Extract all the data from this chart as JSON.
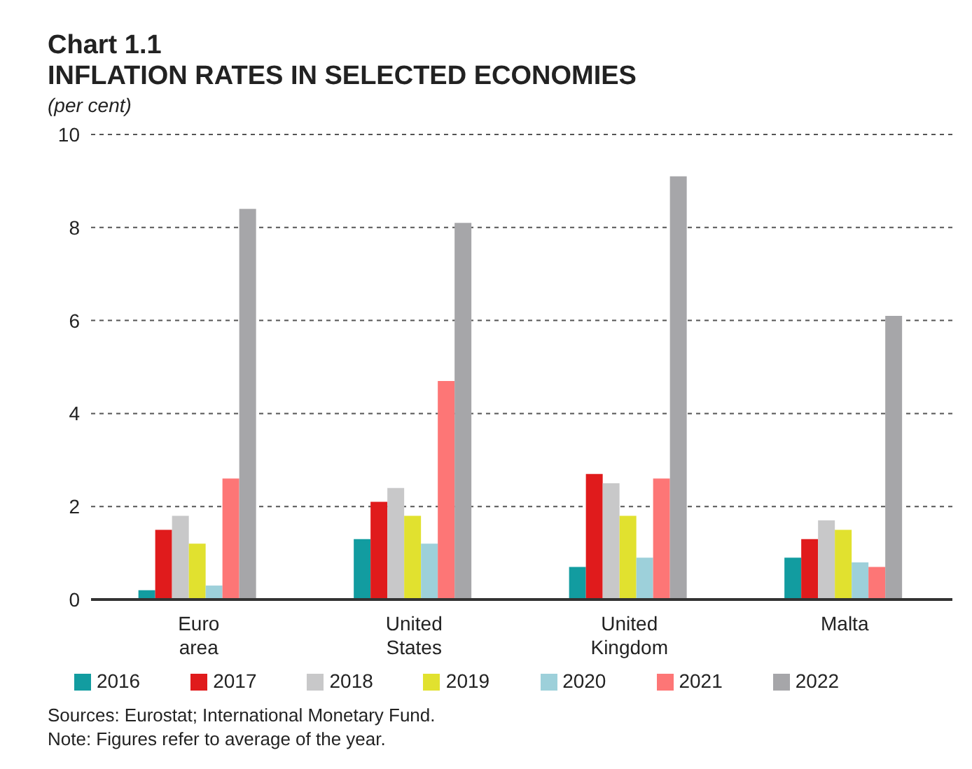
{
  "chart_data": {
    "type": "bar",
    "title": "Chart 1.1",
    "subtitle": "INFLATION RATES IN SELECTED ECONOMIES",
    "ylabel": "(per cent)",
    "categories": [
      "Euro area",
      "United States",
      "United Kingdom",
      "Malta"
    ],
    "series": [
      {
        "name": "2016",
        "color": "#129ca0",
        "values": [
          0.2,
          1.3,
          0.7,
          0.9
        ]
      },
      {
        "name": "2017",
        "color": "#e01b1c",
        "values": [
          1.5,
          2.1,
          2.7,
          1.3
        ]
      },
      {
        "name": "2018",
        "color": "#c8c8c9",
        "values": [
          1.8,
          2.4,
          2.5,
          1.7
        ]
      },
      {
        "name": "2019",
        "color": "#e1e12f",
        "values": [
          1.2,
          1.8,
          1.8,
          1.5
        ]
      },
      {
        "name": "2020",
        "color": "#9dd0da",
        "values": [
          0.3,
          1.2,
          0.9,
          0.8
        ]
      },
      {
        "name": "2021",
        "color": "#fd7676",
        "values": [
          2.6,
          4.7,
          2.6,
          0.7
        ]
      },
      {
        "name": "2022",
        "color": "#a6a6a9",
        "values": [
          8.4,
          8.1,
          9.1,
          6.1
        ]
      }
    ],
    "ylim": [
      0,
      10
    ],
    "yticks": [
      0,
      2,
      4,
      6,
      8,
      10
    ],
    "grid": "y",
    "legend": "bottom",
    "annotations": [
      "Sources: Eurostat; International Monetary Fund.",
      "Note: Figures refer to average of the year."
    ]
  }
}
